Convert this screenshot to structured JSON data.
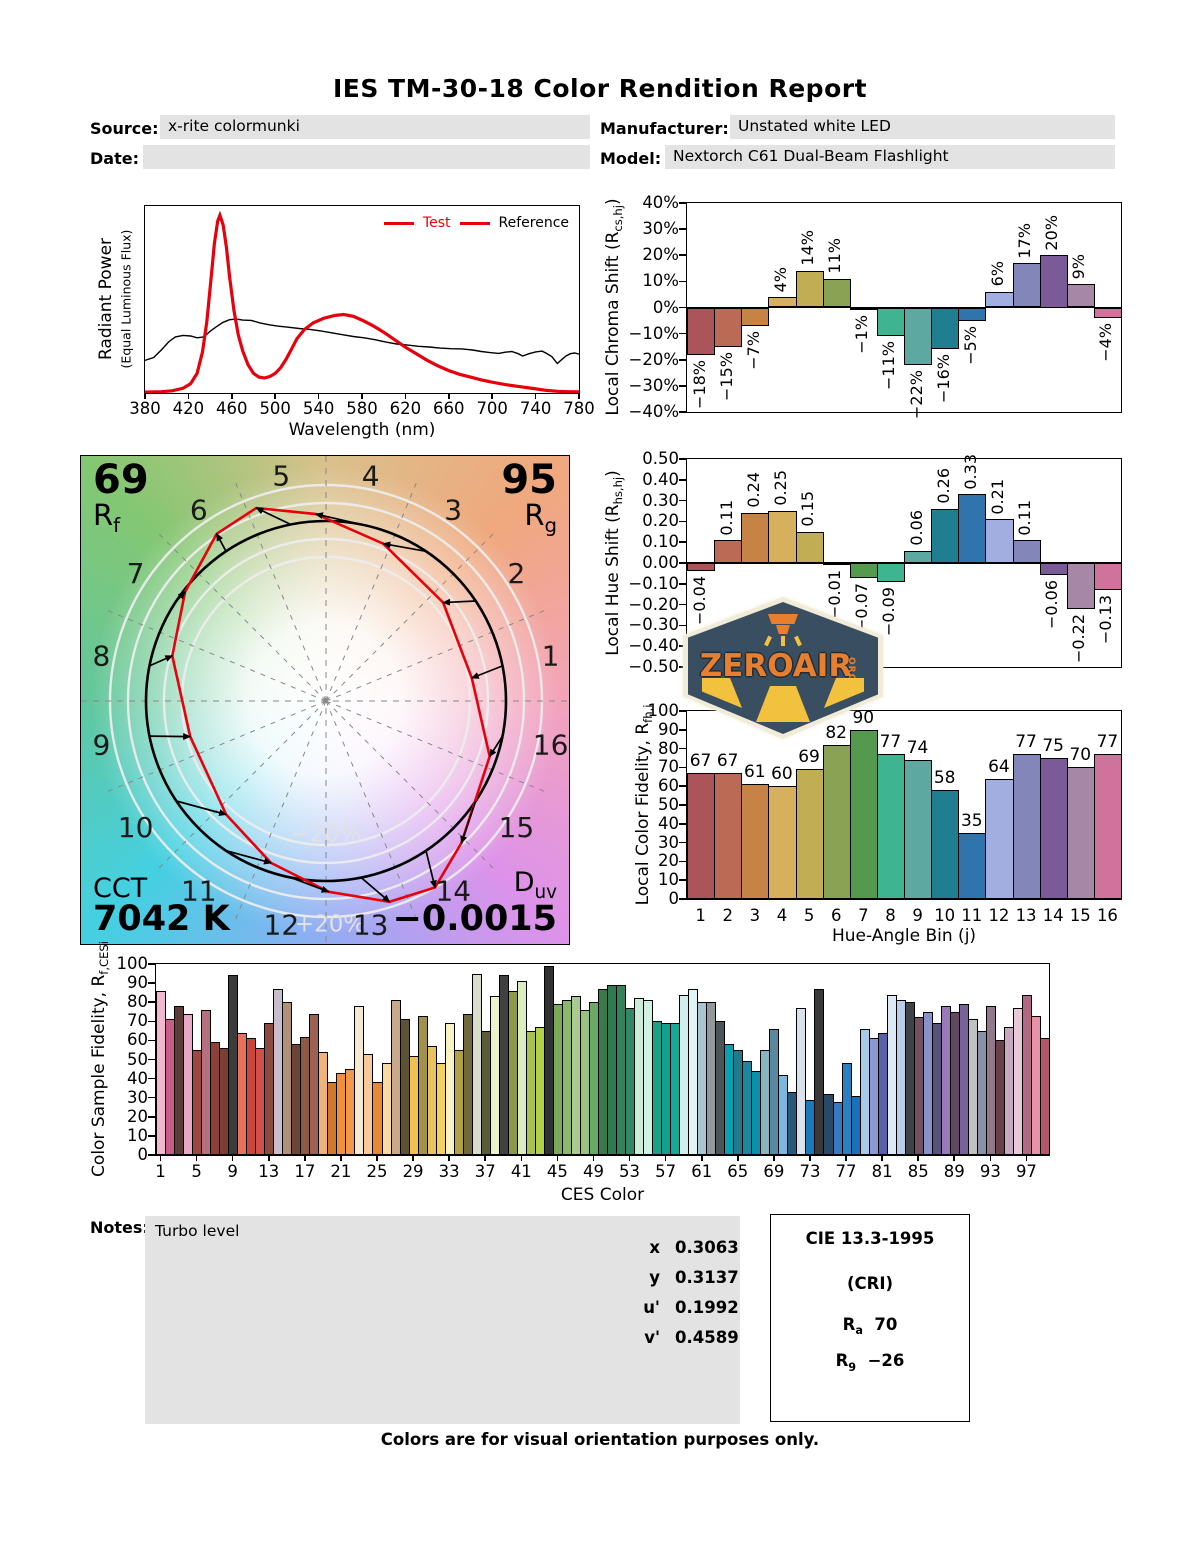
{
  "title": "IES TM-30-18 Color Rendition Report",
  "header": {
    "source_label": "Source:",
    "source_value": "x-rite colormunki",
    "date_label": "Date:",
    "date_value": "",
    "manufacturer_label": "Manufacturer:",
    "manufacturer_value": "Unstated white LED",
    "model_label": "Model:",
    "model_value": "Nextorch C61 Dual-Beam Flashlight"
  },
  "palette16": [
    "#ab5459",
    "#bb6a55",
    "#c68345",
    "#d6b05c",
    "#c1ad54",
    "#8aa253",
    "#55994f",
    "#3fb491",
    "#5ea8a2",
    "#1f7f90",
    "#2f74ad",
    "#a2aee0",
    "#8286b8",
    "#7a5a97",
    "#a687a5",
    "#cf729c"
  ],
  "hatch16": [
    true,
    true,
    false,
    false,
    true,
    false,
    true,
    false,
    false,
    true,
    true,
    true,
    false,
    false,
    true,
    false
  ],
  "chart_data": [
    {
      "id": "spd",
      "type": "line",
      "xlabel": "Wavelength (nm)",
      "ylabel": "Radiant Power",
      "ylabel2": "(Equal Luminous Flux)",
      "xlim": [
        380,
        780
      ],
      "ylim": [
        0,
        1
      ],
      "xticks": [
        380,
        420,
        460,
        500,
        540,
        580,
        620,
        660,
        700,
        740,
        780
      ],
      "legend": [
        {
          "label": "Test",
          "color": "#e8000b"
        },
        {
          "label": "Reference",
          "color": "#000000"
        }
      ],
      "series": [
        {
          "name": "Test",
          "color": "#e8000b",
          "width": 3.2,
          "points": [
            [
              380,
              0.005
            ],
            [
              395,
              0.007
            ],
            [
              405,
              0.012
            ],
            [
              415,
              0.025
            ],
            [
              422,
              0.05
            ],
            [
              428,
              0.105
            ],
            [
              433,
              0.22
            ],
            [
              437,
              0.38
            ],
            [
              441,
              0.62
            ],
            [
              444,
              0.8
            ],
            [
              447,
              0.92
            ],
            [
              449,
              0.95
            ],
            [
              452,
              0.9
            ],
            [
              455,
              0.78
            ],
            [
              458,
              0.62
            ],
            [
              462,
              0.44
            ],
            [
              466,
              0.31
            ],
            [
              470,
              0.225
            ],
            [
              475,
              0.15
            ],
            [
              480,
              0.105
            ],
            [
              485,
              0.085
            ],
            [
              490,
              0.08
            ],
            [
              495,
              0.088
            ],
            [
              500,
              0.105
            ],
            [
              505,
              0.135
            ],
            [
              510,
              0.18
            ],
            [
              515,
              0.235
            ],
            [
              520,
              0.29
            ],
            [
              527,
              0.34
            ],
            [
              535,
              0.375
            ],
            [
              545,
              0.4
            ],
            [
              555,
              0.415
            ],
            [
              563,
              0.42
            ],
            [
              572,
              0.41
            ],
            [
              580,
              0.39
            ],
            [
              590,
              0.36
            ],
            [
              600,
              0.325
            ],
            [
              610,
              0.285
            ],
            [
              620,
              0.245
            ],
            [
              630,
              0.21
            ],
            [
              640,
              0.175
            ],
            [
              650,
              0.145
            ],
            [
              660,
              0.12
            ],
            [
              670,
              0.1
            ],
            [
              680,
              0.085
            ],
            [
              690,
              0.07
            ],
            [
              700,
              0.058
            ],
            [
              712,
              0.045
            ],
            [
              725,
              0.034
            ],
            [
              738,
              0.024
            ],
            [
              750,
              0.014
            ],
            [
              760,
              0.009
            ],
            [
              770,
              0.007
            ],
            [
              780,
              0.006
            ]
          ]
        },
        {
          "name": "Reference",
          "color": "#000000",
          "width": 1.4,
          "points": [
            [
              380,
              0.175
            ],
            [
              388,
              0.19
            ],
            [
              395,
              0.23
            ],
            [
              402,
              0.275
            ],
            [
              408,
              0.3
            ],
            [
              415,
              0.308
            ],
            [
              422,
              0.305
            ],
            [
              428,
              0.295
            ],
            [
              434,
              0.3
            ],
            [
              440,
              0.33
            ],
            [
              446,
              0.355
            ],
            [
              452,
              0.378
            ],
            [
              458,
              0.392
            ],
            [
              464,
              0.395
            ],
            [
              470,
              0.39
            ],
            [
              478,
              0.388
            ],
            [
              486,
              0.375
            ],
            [
              494,
              0.365
            ],
            [
              502,
              0.358
            ],
            [
              512,
              0.352
            ],
            [
              522,
              0.345
            ],
            [
              532,
              0.34
            ],
            [
              542,
              0.332
            ],
            [
              552,
              0.322
            ],
            [
              562,
              0.312
            ],
            [
              572,
              0.302
            ],
            [
              582,
              0.295
            ],
            [
              592,
              0.285
            ],
            [
              602,
              0.272
            ],
            [
              612,
              0.262
            ],
            [
              622,
              0.256
            ],
            [
              632,
              0.25
            ],
            [
              642,
              0.246
            ],
            [
              652,
              0.24
            ],
            [
              662,
              0.237
            ],
            [
              672,
              0.236
            ],
            [
              682,
              0.23
            ],
            [
              690,
              0.222
            ],
            [
              698,
              0.216
            ],
            [
              706,
              0.212
            ],
            [
              712,
              0.218
            ],
            [
              718,
              0.222
            ],
            [
              724,
              0.21
            ],
            [
              728,
              0.198
            ],
            [
              734,
              0.21
            ],
            [
              740,
              0.22
            ],
            [
              746,
              0.224
            ],
            [
              750,
              0.212
            ],
            [
              755,
              0.194
            ],
            [
              760,
              0.158
            ],
            [
              764,
              0.178
            ],
            [
              768,
              0.198
            ],
            [
              772,
              0.21
            ],
            [
              776,
              0.214
            ],
            [
              780,
              0.208
            ]
          ]
        }
      ]
    },
    {
      "id": "chroma_shift",
      "type": "bar",
      "ylabel_pre": "Local Chroma Shift (R",
      "ylabel_sub": "cs,hj",
      "ylabel_post": ")",
      "ylim": [
        -40,
        40
      ],
      "ytick_step": 10,
      "ytick_suffix": "%",
      "categories": [
        1,
        2,
        3,
        4,
        5,
        6,
        7,
        8,
        9,
        10,
        11,
        12,
        13,
        14,
        15,
        16
      ],
      "values": [
        -18,
        -15,
        -7,
        4,
        14,
        11,
        -1,
        -11,
        -22,
        -16,
        -5,
        6,
        17,
        20,
        9,
        -4
      ],
      "labels": [
        "−18%",
        "−15%",
        "−7%",
        "4%",
        "14%",
        "11%",
        "−1%",
        "−11%",
        "−22%",
        "−16%",
        "−5%",
        "6%",
        "17%",
        "20%",
        "9%",
        "−4%"
      ]
    },
    {
      "id": "hue_shift",
      "type": "bar",
      "ylabel_pre": "Local Hue Shift (R",
      "ylabel_sub": "hs,hj",
      "ylabel_post": ")",
      "ylim": [
        -0.5,
        0.5
      ],
      "ytick_step": 0.1,
      "categories": [
        1,
        2,
        3,
        4,
        5,
        6,
        7,
        8,
        9,
        10,
        11,
        12,
        13,
        14,
        15,
        16
      ],
      "values": [
        -0.04,
        0.11,
        0.24,
        0.25,
        0.15,
        -0.01,
        -0.07,
        -0.09,
        0.06,
        0.26,
        0.33,
        0.21,
        0.11,
        -0.06,
        -0.22,
        -0.13
      ],
      "labels": [
        "−0.04",
        "0.11",
        "0.24",
        "0.25",
        "0.15",
        "−0.01",
        "−0.07",
        "−0.09",
        "0.06",
        "0.26",
        "0.33",
        "0.21",
        "0.11",
        "−0.06",
        "−0.22",
        "−0.13"
      ]
    },
    {
      "id": "local_fidelity",
      "type": "bar",
      "ylabel_pre": "Local Color Fidelity, R",
      "ylabel_sub": "fh,i",
      "ylabel_post": "",
      "xlabel": "Hue-Angle Bin (j)",
      "ylim": [
        0,
        100
      ],
      "ytick_step": 10,
      "categories": [
        1,
        2,
        3,
        4,
        5,
        6,
        7,
        8,
        9,
        10,
        11,
        12,
        13,
        14,
        15,
        16
      ],
      "values": [
        67,
        67,
        61,
        60,
        69,
        82,
        90,
        77,
        74,
        58,
        35,
        64,
        77,
        75,
        70,
        77
      ],
      "labels": [
        "67",
        "67",
        "61",
        "60",
        "69",
        "82",
        "90",
        "77",
        "74",
        "58",
        "35",
        "64",
        "77",
        "75",
        "70",
        "77"
      ]
    },
    {
      "id": "ces",
      "type": "bar",
      "ylabel_pre": "Color Sample Fidelity, R",
      "ylabel_sub": "f,CESi",
      "ylabel_post": "",
      "xlabel": "CES Color",
      "ylim": [
        0,
        100
      ],
      "ytick_step": 10,
      "xticks": [
        1,
        5,
        9,
        13,
        17,
        21,
        25,
        29,
        33,
        37,
        41,
        45,
        49,
        53,
        57,
        61,
        65,
        69,
        73,
        77,
        81,
        85,
        89,
        93,
        97
      ],
      "values": [
        86,
        71,
        78,
        74,
        55,
        76,
        59,
        56,
        94,
        64,
        61,
        56,
        69,
        87,
        80,
        58,
        62,
        74,
        54,
        38,
        43,
        45,
        78,
        53,
        38,
        48,
        81,
        71,
        52,
        73,
        57,
        48,
        69,
        55,
        74,
        95,
        65,
        83,
        94,
        86,
        91,
        65,
        67,
        99,
        79,
        81,
        83,
        76,
        80,
        87,
        89,
        89,
        77,
        82,
        81,
        70,
        69,
        69,
        84,
        87,
        80,
        80,
        70,
        58,
        55,
        49,
        44,
        55,
        66,
        42,
        33,
        77,
        29,
        87,
        32,
        28,
        48,
        31,
        66,
        61,
        64,
        84,
        81,
        80,
        72,
        75,
        69,
        78,
        75,
        79,
        71,
        65,
        78,
        60,
        67,
        77,
        84,
        73,
        61
      ],
      "colors": [
        "#f3b8cf",
        "#c75d88",
        "#5e3c3a",
        "#e7a9c5",
        "#9e4642",
        "#b5707f",
        "#8c4038",
        "#7c3d35",
        "#3c3c3c",
        "#e87159",
        "#cc453a",
        "#d05148",
        "#8c4b3d",
        "#c9bdcd",
        "#b29179",
        "#6c4535",
        "#8c5b41",
        "#9c6152",
        "#f0b17a",
        "#d1792a",
        "#f0913a",
        "#f0994a",
        "#f5e9d1",
        "#f8c999",
        "#e88931",
        "#f8d9a1",
        "#c9a989",
        "#5b5331",
        "#f0c151",
        "#a19149",
        "#e8c161",
        "#f0d161",
        "#f8f1c1",
        "#b1a141",
        "#716939",
        "#d9ddc9",
        "#5b5d39",
        "#ebf1c9",
        "#414141",
        "#8b9949",
        "#d9edc1",
        "#a9c151",
        "#b1d149",
        "#313131",
        "#79a959",
        "#89b969",
        "#a9c991",
        "#99c181",
        "#69a961",
        "#3a7a4a",
        "#2f7a50",
        "#35825a",
        "#318869",
        "#c9edd9",
        "#d1f1e1",
        "#19a189",
        "#11a191",
        "#19a999",
        "#d1eded",
        "#e1f5f5",
        "#a9c5d1",
        "#919999",
        "#495559",
        "#09a1b1",
        "#217989",
        "#1989a1",
        "#0991a9",
        "#89b5c1",
        "#5989a1",
        "#79b9e1",
        "#295979",
        "#d9e1e9",
        "#1979b9",
        "#393939",
        "#294969",
        "#3979c1",
        "#2981c1",
        "#1971b9",
        "#a9c9e9",
        "#8999d1",
        "#5961a9",
        "#dde9f5",
        "#b9cde9",
        "#414149",
        "#715161",
        "#8991c9",
        "#595179",
        "#9979b9",
        "#614961",
        "#796199",
        "#c1c1c1",
        "#8991a9",
        "#917989",
        "#694149",
        "#c9a9c1",
        "#e9c9d9",
        "#b16981",
        "#e991a9",
        "#b15869"
      ]
    }
  ],
  "cvg": {
    "type": "polar-color-vector-graphic",
    "rf_value": "69",
    "rf_pre": "R",
    "rf_sub": "f",
    "rg_value": "95",
    "rg_pre": "R",
    "rg_sub": "g",
    "cct_label": "CCT",
    "cct_value": "7042 K",
    "duv_pre": "D",
    "duv_sub": "uv",
    "duv_value": "−0.0015",
    "ring_inner_label": "−20%",
    "ring_outer_label": "+20%",
    "bins": [
      1,
      2,
      3,
      4,
      5,
      6,
      7,
      8,
      9,
      10,
      11,
      12,
      13,
      14,
      15,
      16
    ],
    "test_color": "#e8000b",
    "reference_color": "#000000"
  },
  "notes": {
    "label": "Notes:",
    "text": "Turbo level"
  },
  "chromaticity": {
    "rows": [
      {
        "label": "x",
        "value": "0.3063"
      },
      {
        "label": "y",
        "value": "0.3137"
      },
      {
        "label": "u'",
        "value": "0.1992"
      },
      {
        "label": "v'",
        "value": "0.4589"
      }
    ]
  },
  "cri": {
    "title": "CIE 13.3-1995",
    "subtitle": "(CRI)",
    "ra_pre": "R",
    "ra_sub": "a",
    "ra_value": "70",
    "r9_pre": "R",
    "r9_sub": "9",
    "r9_value": "−26"
  },
  "footer": "Colors are for visual orientation purposes only.",
  "logo": {
    "text": "ZEROAIR",
    "suffix": "ORG"
  }
}
